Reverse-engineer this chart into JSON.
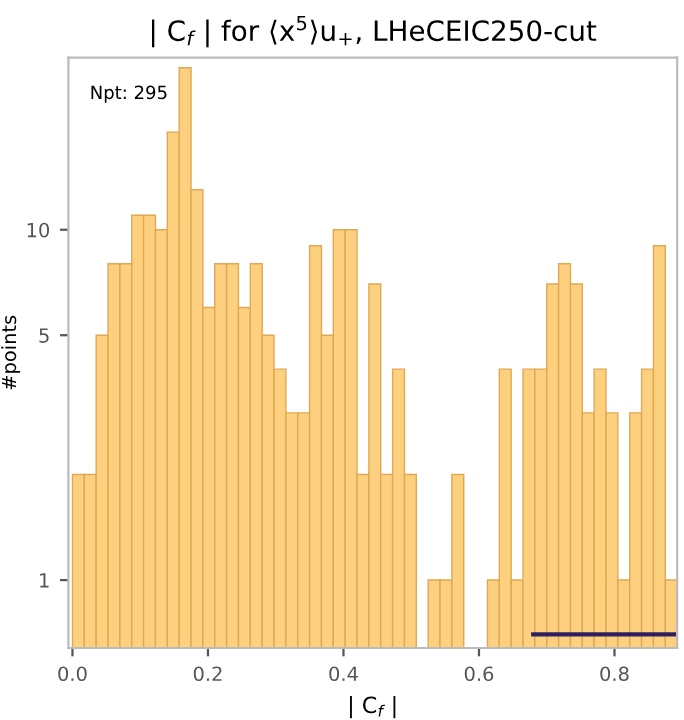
{
  "chart_data": {
    "type": "histogram",
    "title": "| C$_{f}$ | for ⟨x$^{5}$⟩u$_{+}$, LHeCEIC250-cut",
    "xlabel": "| C$_{f}$ |",
    "ylabel": "#points",
    "annotations": [
      "Npt: 295"
    ],
    "bins": [
      0,
      0.0175,
      0.035,
      0.0525,
      0.07,
      0.0875,
      0.105,
      0.1225,
      0.14,
      0.1575,
      0.175,
      0.1925,
      0.21,
      0.2275,
      0.245,
      0.2625,
      0.28,
      0.2975,
      0.315,
      0.3325,
      0.35,
      0.3675,
      0.385,
      0.4025,
      0.42,
      0.4375,
      0.455,
      0.4725,
      0.49,
      0.5075,
      0.525,
      0.5425,
      0.56,
      0.5775,
      0.595,
      0.6125,
      0.63,
      0.6475,
      0.665,
      0.6825,
      0.7,
      0.7175,
      0.735,
      0.7525,
      0.77,
      0.7875,
      0.805,
      0.8225,
      0.84,
      0.8575,
      0.875,
      0.8925
    ],
    "values": [
      2,
      2,
      5,
      8,
      8,
      11,
      11,
      10,
      19,
      29,
      13,
      6,
      8,
      8,
      6,
      8,
      5,
      4,
      3,
      3,
      9,
      5,
      10,
      10,
      2,
      7,
      2,
      4,
      2,
      null,
      1,
      1,
      2,
      null,
      null,
      1,
      4,
      1,
      4,
      4,
      7,
      8,
      7,
      3,
      4,
      3,
      1,
      3,
      4,
      9,
      1
    ],
    "color": "#fdd080",
    "series": [
      {
        "type": "line",
        "color": "#2e2060",
        "x": [
          0.68,
          0.8925
        ],
        "values": [
          0.7,
          0.7
        ]
      }
    ],
    "log": "y",
    "xlim": [
      -0.006,
      0.8925
    ],
    "ylim": [
      0.64,
      31
    ],
    "xticks": [
      {
        "value": 0,
        "label": "0.0"
      },
      {
        "value": 0.2,
        "label": "0.2"
      },
      {
        "value": 0.4,
        "label": "0.4"
      },
      {
        "value": 0.6,
        "label": "0.6"
      },
      {
        "value": 0.8,
        "label": "0.8"
      }
    ],
    "yticks": [
      1,
      5,
      10
    ],
    "grid": false,
    "legend": false
  }
}
